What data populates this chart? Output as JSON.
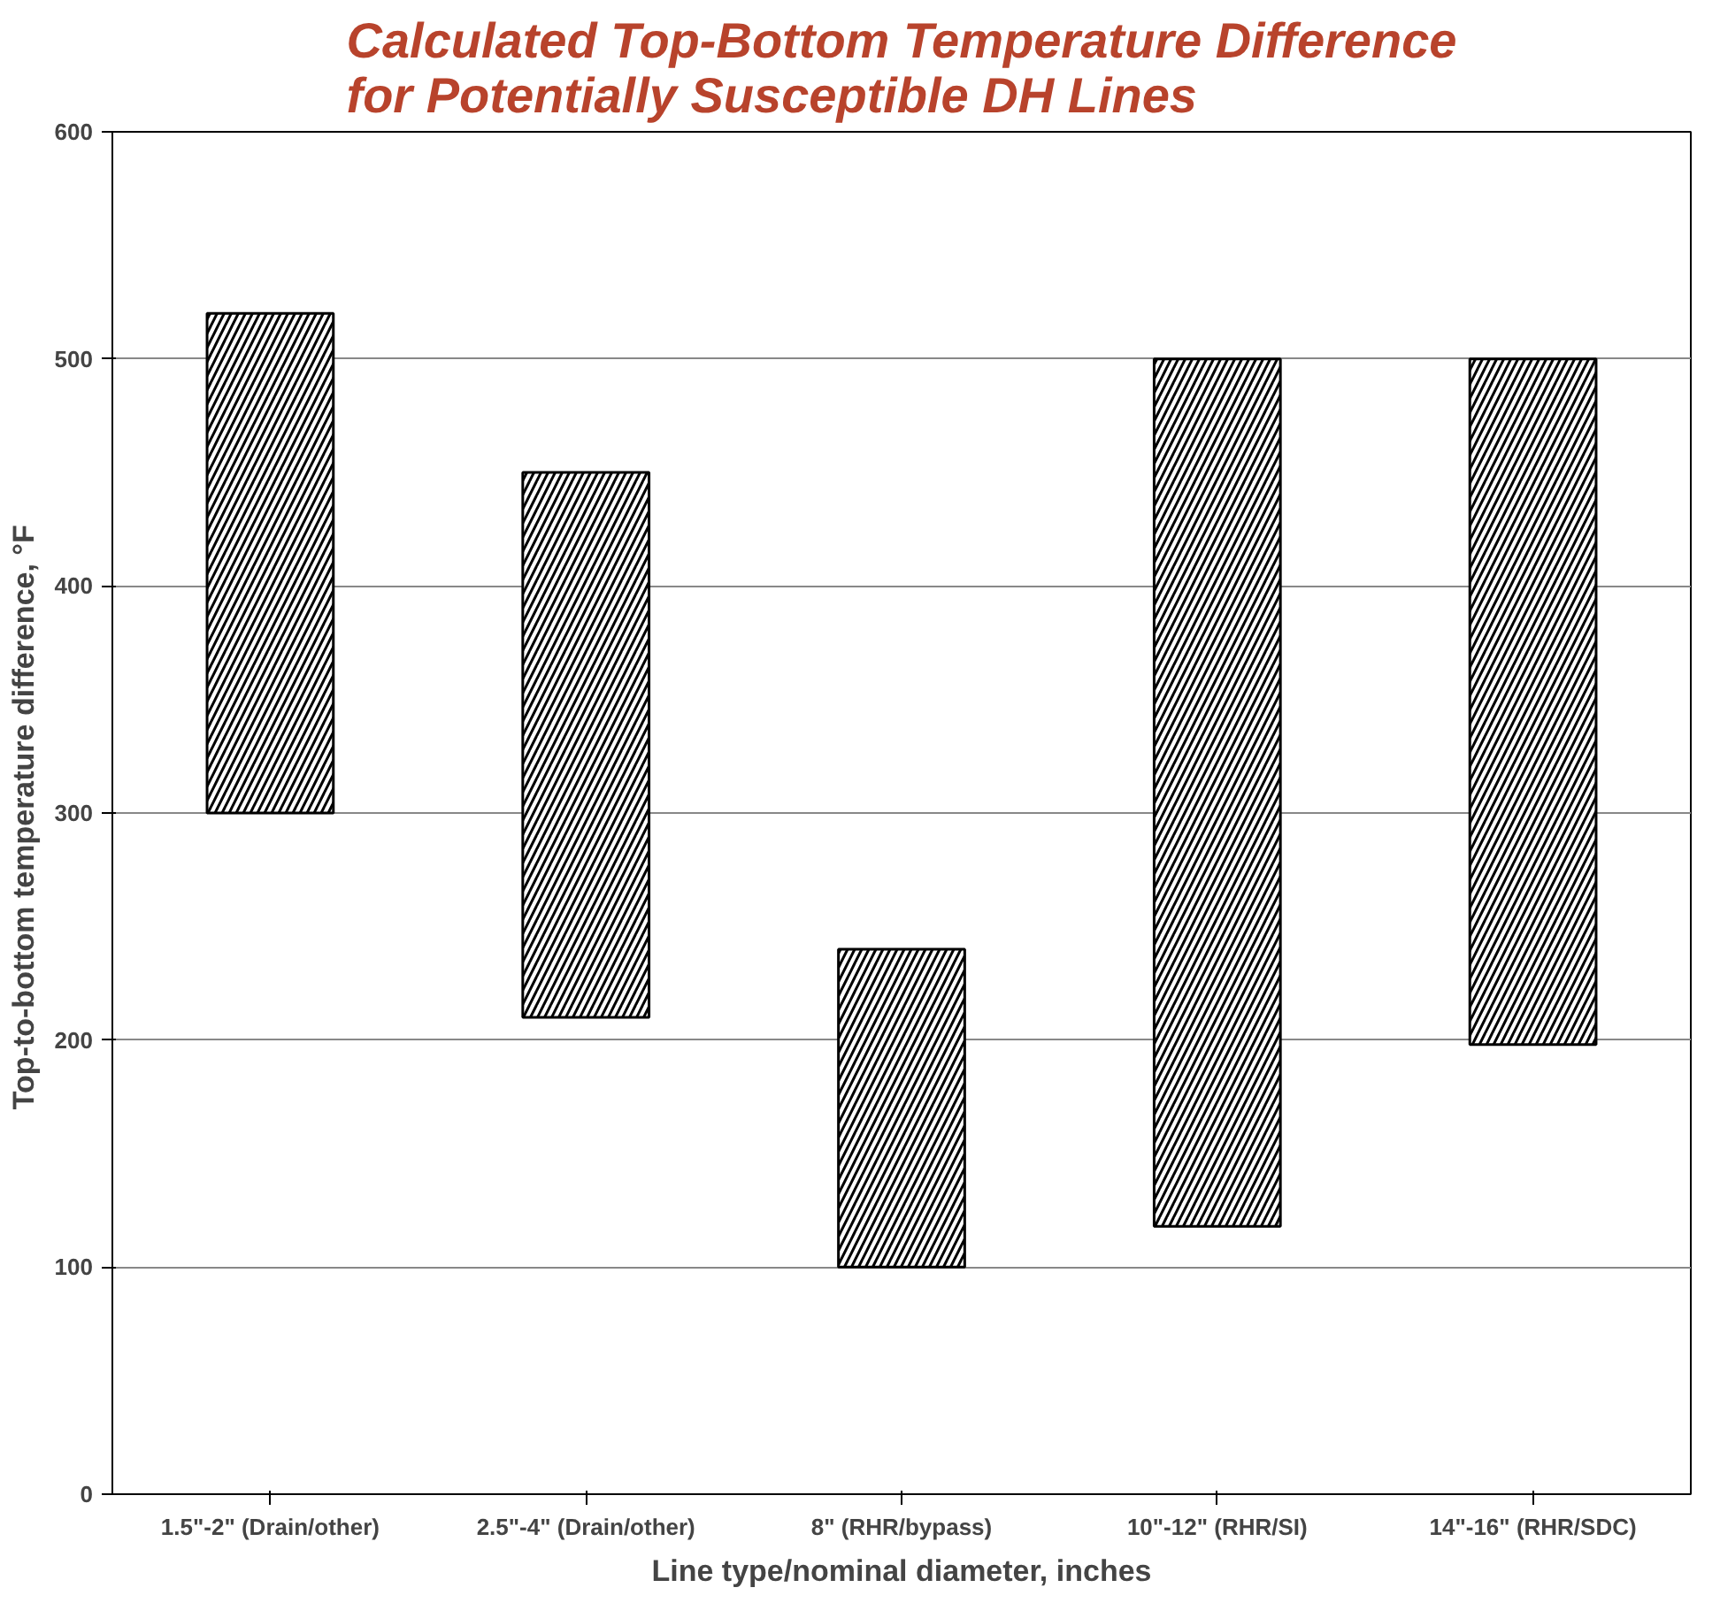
{
  "chart_data": {
    "type": "bar",
    "title": "Calculated Top-Bottom Temperature Difference\nfor Potentially Susceptible DH Lines",
    "xlabel": "Line type/nominal diameter, inches",
    "ylabel": "Top-to-bottom temperature difference,  °F",
    "categories": [
      "1.5\"-2\" (Drain/other)",
      "2.5\"-4\" (Drain/other)",
      "8\" (RHR/bypass)",
      "10\"-12\" (RHR/SI)",
      "14\"-16\" (RHR/SDC)"
    ],
    "base": [
      300,
      210,
      100,
      118,
      198
    ],
    "values": [
      220,
      240,
      140,
      382,
      302
    ],
    "color": "#000000",
    "ylim": [
      0,
      600
    ],
    "yticks": [
      0,
      100,
      200,
      300,
      400,
      500,
      600
    ],
    "grid": "y"
  }
}
